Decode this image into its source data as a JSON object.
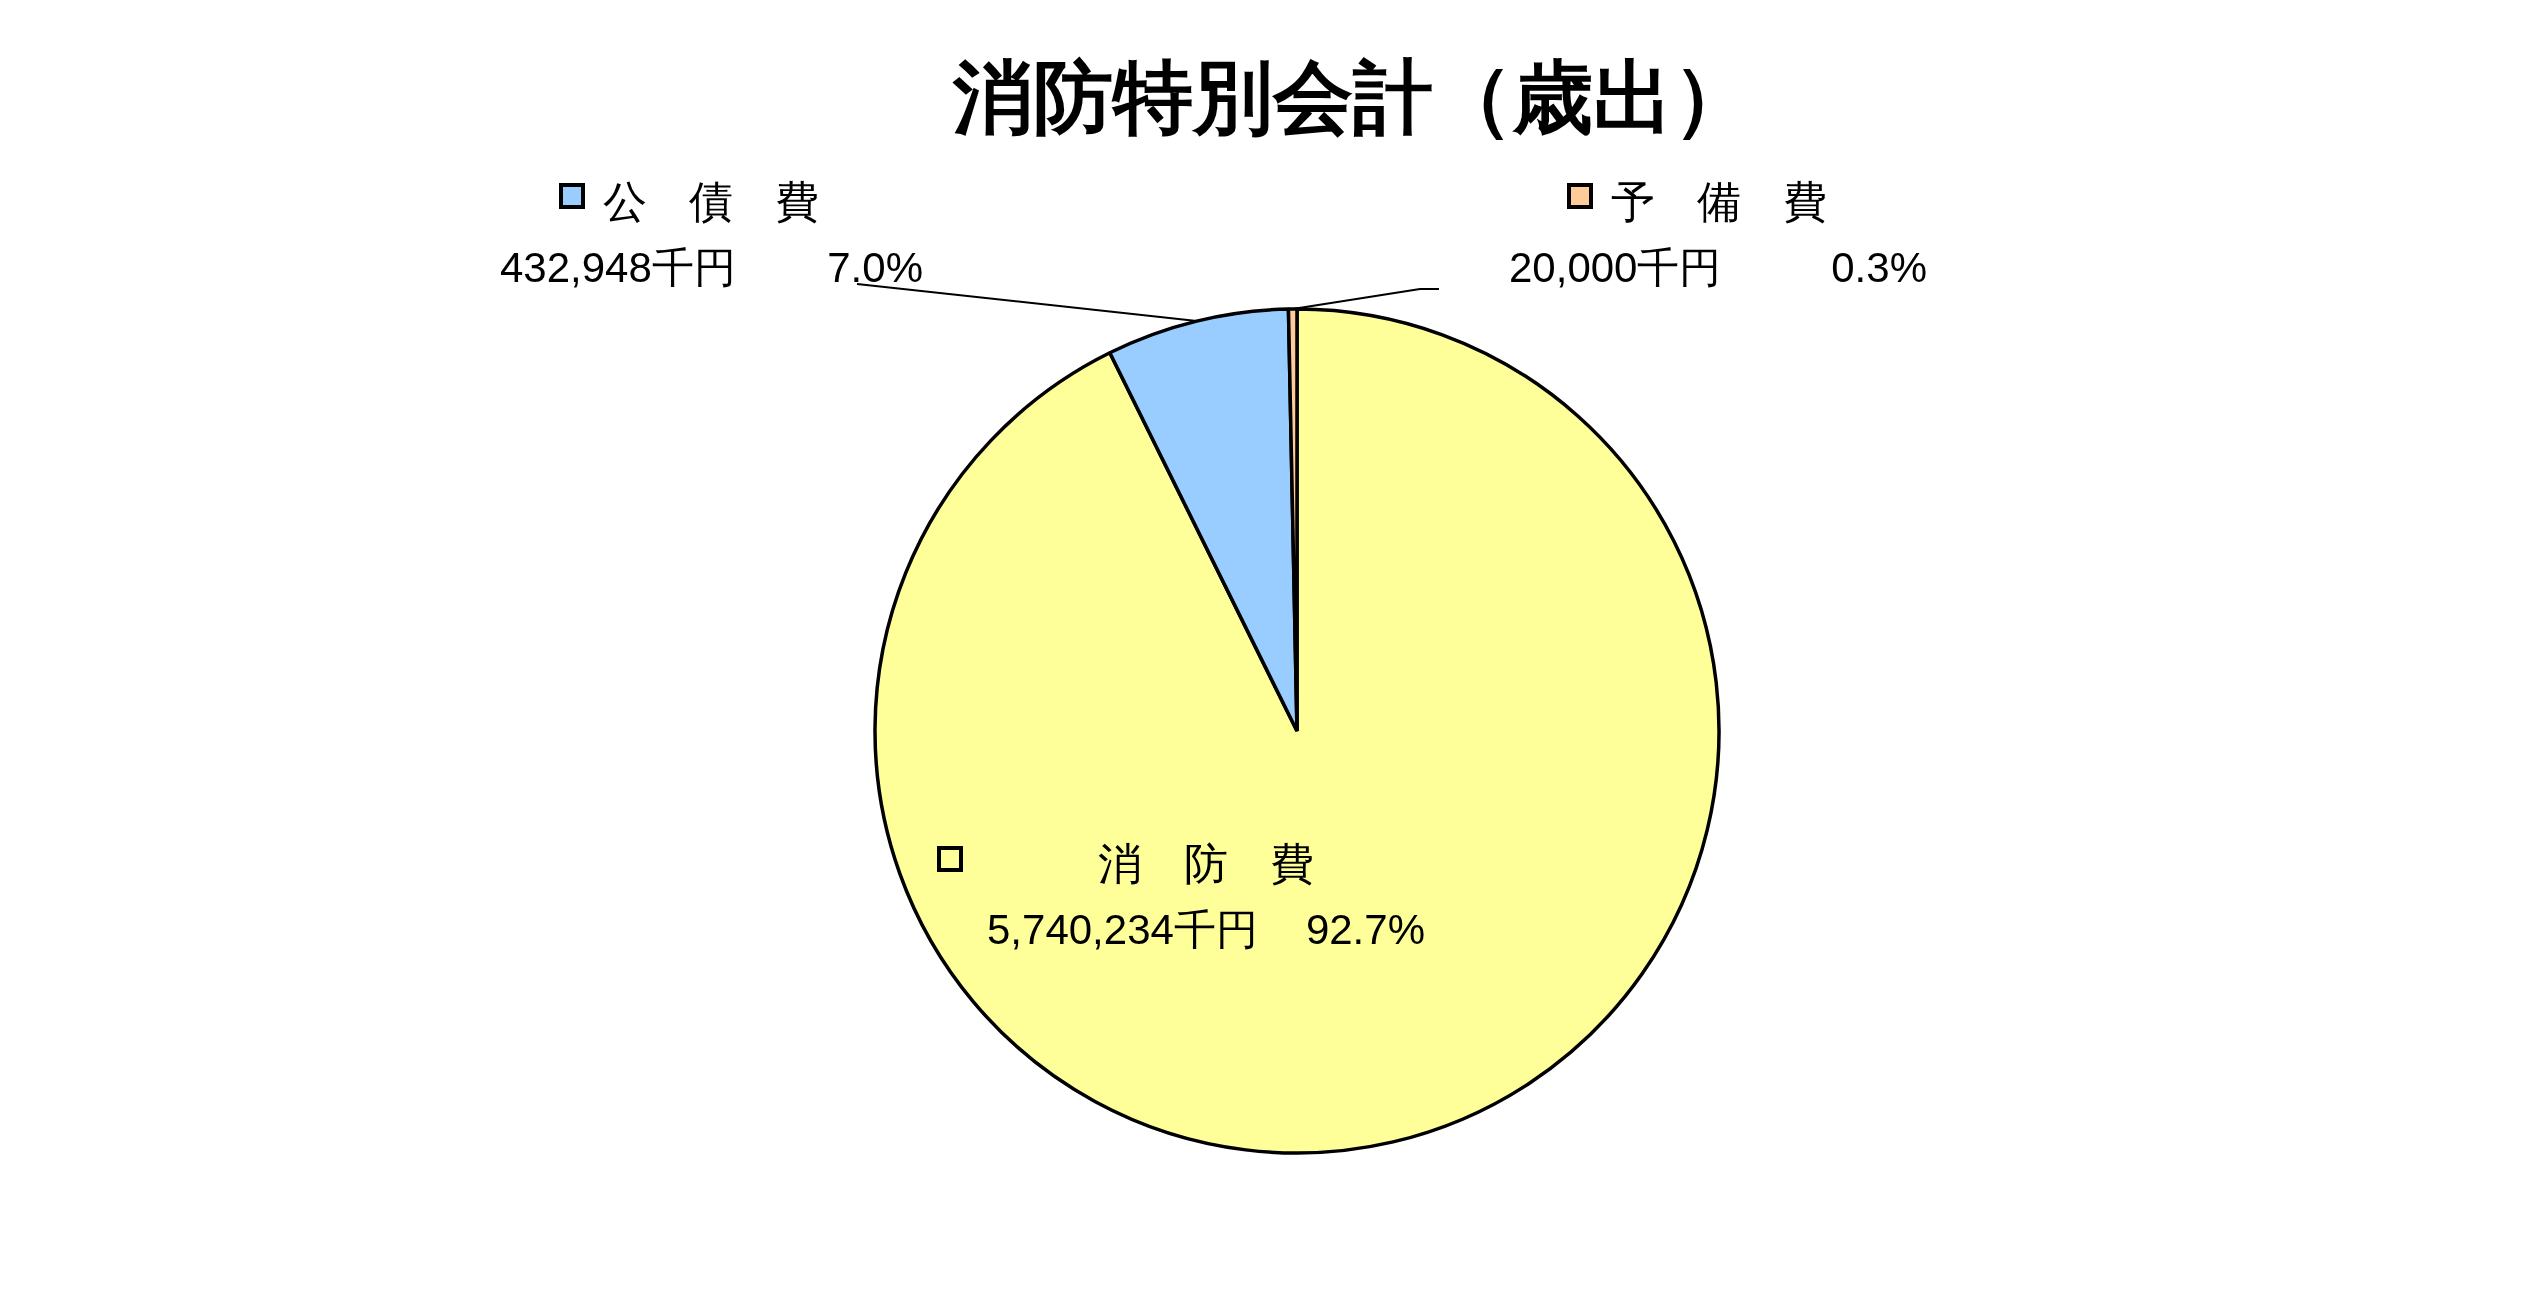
{
  "chart_data": {
    "type": "pie",
    "title": "消防特別会計（歳出）",
    "categories": [
      "消防費",
      "公債費",
      "予備費"
    ],
    "values": [
      5740234,
      432948,
      20000
    ],
    "colors": [
      "#ffff99",
      "#99ccff",
      "#ffcc99"
    ],
    "value_labels": [
      "5,740,234千円 92.7%",
      "432,948千円 7.0%",
      "20,000千円 0.3%"
    ],
    "legend": "top"
  }
}
